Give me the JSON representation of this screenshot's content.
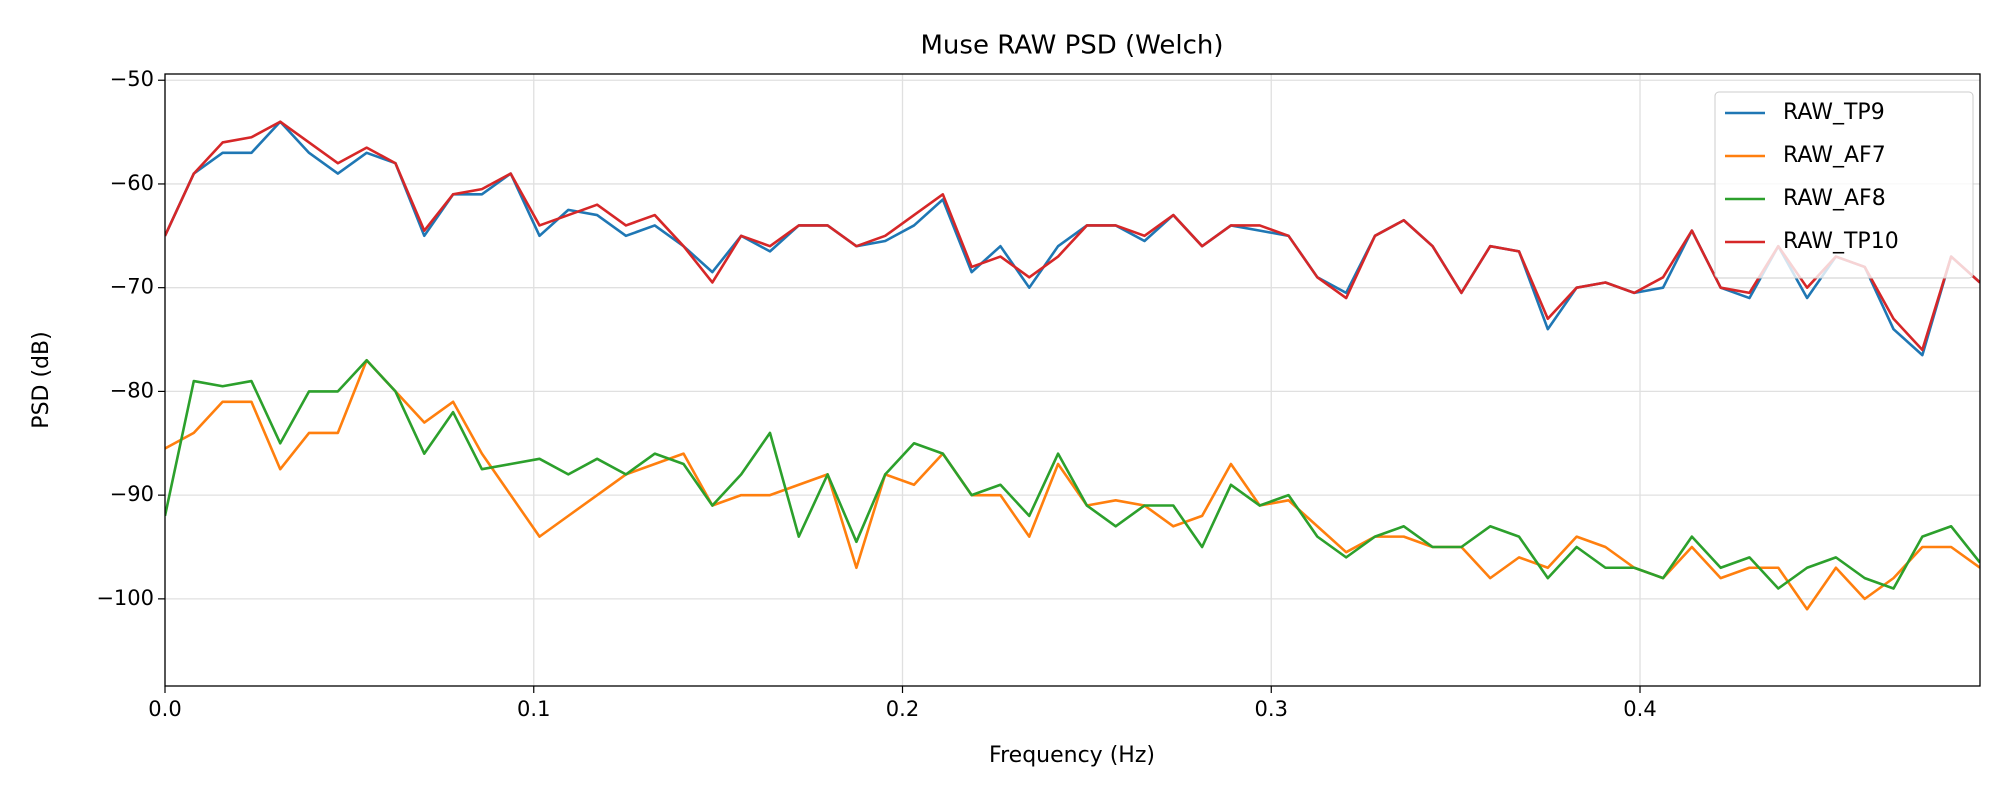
{
  "chart_data": {
    "type": "line",
    "title": "Muse RAW PSD (Welch)",
    "xlabel": "Frequency (Hz)",
    "ylabel": "PSD (dB)",
    "x": [
      0,
      0.0078125,
      0.015625,
      0.0234375,
      0.03125,
      0.0390625,
      0.046875,
      0.0546875,
      0.0625,
      0.0703125,
      0.078125,
      0.0859375,
      0.09375,
      0.1015625,
      0.109375,
      0.1171875,
      0.125,
      0.1328125,
      0.140625,
      0.1484375,
      0.15625,
      0.1640625,
      0.171875,
      0.1796875,
      0.1875,
      0.1953125,
      0.203125,
      0.2109375,
      0.21875,
      0.2265625,
      0.234375,
      0.2421875,
      0.25,
      0.2578125,
      0.265625,
      0.2734375,
      0.28125,
      0.2890625,
      0.296875,
      0.3046875,
      0.3125,
      0.3203125,
      0.328125,
      0.3359375,
      0.34375,
      0.3515625,
      0.359375,
      0.3671875,
      0.375,
      0.3828125,
      0.390625,
      0.3984375,
      0.40625,
      0.4140625,
      0.421875,
      0.4296875,
      0.4375,
      0.4453125,
      0.453125,
      0.4609375,
      0.46875,
      0.4765625,
      0.484375,
      0.4921875
    ],
    "series": [
      {
        "name": "RAW_TP9",
        "color": "#1f77b4",
        "values": [
          -65,
          -59,
          -57,
          -57,
          -54,
          -57,
          -59,
          -57,
          -58,
          -65,
          -61,
          -61,
          -59,
          -65,
          -62.5,
          -63,
          -65,
          -64,
          -66,
          -68.5,
          -65,
          -66.5,
          -64,
          -64,
          -66,
          -65.5,
          -64,
          -61.5,
          -68.5,
          -66,
          -70,
          -66,
          -64,
          -64,
          -65.5,
          -63,
          -66,
          -64,
          -64.5,
          -65,
          -69,
          -70.5,
          -65,
          -63.5,
          -66,
          -70.5,
          -66,
          -66.5,
          -74,
          -70,
          -69.5,
          -70.5,
          -70,
          -64.5,
          -70,
          -71,
          -66,
          -71,
          -67,
          -68,
          -74,
          -76.5,
          -67,
          -69.5
        ]
      },
      {
        "name": "RAW_AF7",
        "color": "#ff7f0e",
        "values": [
          -85.5,
          -84,
          -81,
          -81,
          -87.5,
          -84,
          -84,
          -77,
          -80,
          -83,
          -81,
          -86,
          -90,
          -94,
          -92,
          -90,
          -88,
          -87,
          -86,
          -91,
          -90,
          -90,
          -89,
          -88,
          -97,
          -88,
          -89,
          -86,
          -90,
          -90,
          -94,
          -87,
          -91,
          -90.5,
          -91,
          -93,
          -92,
          -87,
          -91,
          -90.5,
          -93,
          -95.5,
          -94,
          -94,
          -95,
          -95,
          -98,
          -96,
          -97,
          -94,
          -95,
          -97,
          -98,
          -95,
          -98,
          -97,
          -97,
          -101,
          -97,
          -100,
          -98,
          -95,
          -95,
          -97
        ]
      },
      {
        "name": "RAW_AF8",
        "color": "#2ca02c",
        "values": [
          -92,
          -79,
          -79.5,
          -79,
          -85,
          -80,
          -80,
          -77,
          -80,
          -86,
          -82,
          -87.5,
          -87,
          -86.5,
          -88,
          -86.5,
          -88,
          -86,
          -87,
          -91,
          -88,
          -84,
          -94,
          -88,
          -94.5,
          -88,
          -85,
          -86,
          -90,
          -89,
          -92,
          -86,
          -91,
          -93,
          -91,
          -91,
          -95,
          -89,
          -91,
          -90,
          -94,
          -96,
          -94,
          -93,
          -95,
          -95,
          -93,
          -94,
          -98,
          -95,
          -97,
          -97,
          -98,
          -94,
          -97,
          -96,
          -99,
          -97,
          -96,
          -98,
          -99,
          -94,
          -93,
          -96.5
        ]
      },
      {
        "name": "RAW_TP10",
        "color": "#d62728",
        "values": [
          -65,
          -59,
          -56,
          -55.5,
          -54,
          -56,
          -58,
          -56.5,
          -58,
          -64.5,
          -61,
          -60.5,
          -59,
          -64,
          -63,
          -62,
          -64,
          -63,
          -66,
          -69.5,
          -65,
          -66,
          -64,
          -64,
          -66,
          -65,
          -63,
          -61,
          -68,
          -67,
          -69,
          -67,
          -64,
          -64,
          -65,
          -63,
          -66,
          -64,
          -64,
          -65,
          -69,
          -71,
          -65,
          -63.5,
          -66,
          -70.5,
          -66,
          -66.5,
          -73,
          -70,
          -69.5,
          -70.5,
          -69,
          -64.5,
          -70,
          -70.5,
          -66,
          -70,
          -67,
          -68,
          -73,
          -76,
          -67,
          -69.5
        ]
      }
    ],
    "xlim": [
      0,
      0.4922
    ],
    "ylim": [
      -108.4,
      -49.4
    ],
    "xticks": [
      {
        "value": 0,
        "label": "0.0"
      },
      {
        "value": 0.1,
        "label": "0.1"
      },
      {
        "value": 0.2,
        "label": "0.2"
      },
      {
        "value": 0.3,
        "label": "0.3"
      },
      {
        "value": 0.4,
        "label": "0.4"
      }
    ],
    "yticks": [
      {
        "value": -50,
        "label": "−50"
      },
      {
        "value": -60,
        "label": "−60"
      },
      {
        "value": -70,
        "label": "−70"
      },
      {
        "value": -80,
        "label": "−80"
      },
      {
        "value": -90,
        "label": "−90"
      },
      {
        "value": -100,
        "label": "−100"
      }
    ],
    "grid": true,
    "legend": "upper right"
  }
}
